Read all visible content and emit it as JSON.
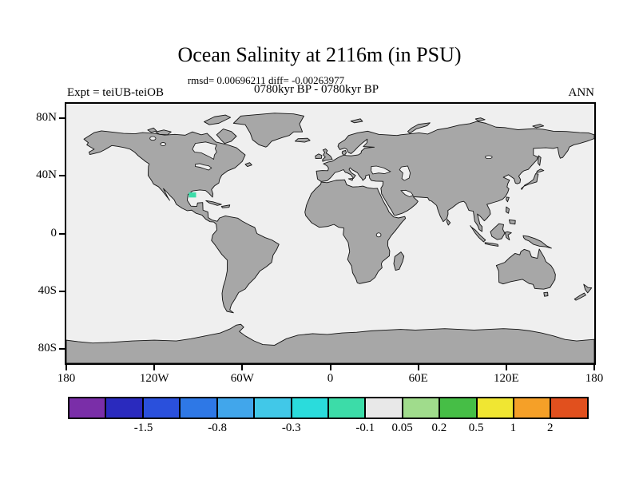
{
  "header": {
    "title": "Ocean Salinity at 2116m (in PSU)",
    "stats_line": "rmsd= 0.00696211 diff= -0.00263977",
    "period_line": "0780kyr BP - 0780kyr BP",
    "experiment_label": "Expt = teiUB-teiOB",
    "season_label": "ANN"
  },
  "axes": {
    "lat_ticks": [
      {
        "label": "80N",
        "deg": 80
      },
      {
        "label": "40N",
        "deg": 40
      },
      {
        "label": "0",
        "deg": 0
      },
      {
        "label": "40S",
        "deg": -40
      },
      {
        "label": "80S",
        "deg": -80
      }
    ],
    "lon_ticks": [
      {
        "label": "180",
        "deg": -180
      },
      {
        "label": "120W",
        "deg": -120
      },
      {
        "label": "60W",
        "deg": -60
      },
      {
        "label": "0",
        "deg": 0
      },
      {
        "label": "60E",
        "deg": 60
      },
      {
        "label": "120E",
        "deg": 120
      },
      {
        "label": "180",
        "deg": 180
      }
    ]
  },
  "colorbar": {
    "segment_colors": [
      "#7a2ea8",
      "#2a2abe",
      "#2a50dc",
      "#2e78e6",
      "#41a6eb",
      "#41c8e8",
      "#2adcdc",
      "#3cdca8",
      "#e8e8e8",
      "#a0dc8c",
      "#46be46",
      "#f0e632",
      "#f5a028",
      "#e1501e"
    ],
    "tick_labels": [
      {
        "text": "-1.5",
        "boundary_index": 2
      },
      {
        "text": "-0.8",
        "boundary_index": 4
      },
      {
        "text": "-0.3",
        "boundary_index": 6
      },
      {
        "text": "-0.1",
        "boundary_index": 8
      },
      {
        "text": "0.05",
        "boundary_index": 9
      },
      {
        "text": "0.2",
        "boundary_index": 10
      },
      {
        "text": "0.5",
        "boundary_index": 11
      },
      {
        "text": "1",
        "boundary_index": 12
      },
      {
        "text": "2",
        "boundary_index": 13
      }
    ]
  },
  "map": {
    "land_color": "#a7a7a7",
    "ocean_color": "#efefef",
    "anomaly": {
      "color": "#3cdca8",
      "location": "Gulf of Mexico",
      "lon": -93,
      "lat": 26
    }
  },
  "chart_data": {
    "type": "heatmap",
    "title": "Ocean Salinity at 2116m (in PSU)",
    "statistics": {
      "rmsd": 0.00696211,
      "diff": -0.00263977
    },
    "period": "0780kyr BP - 0780kyr BP",
    "experiment": "teiUB-teiOB",
    "season": "ANN",
    "depth_m": 2116,
    "units": "PSU",
    "x_axis": {
      "ticks": [
        "180",
        "120W",
        "60W",
        "0",
        "60E",
        "120E",
        "180"
      ],
      "range_deg": [
        -180,
        180
      ]
    },
    "y_axis": {
      "ticks": [
        "80N",
        "40N",
        "0",
        "40S",
        "80S"
      ],
      "range_deg": [
        -90,
        90
      ]
    },
    "color_levels": [
      -2,
      -1.5,
      -1,
      -0.8,
      -0.5,
      -0.3,
      -0.2,
      -0.1,
      0.05,
      0.2,
      0.5,
      1,
      2
    ],
    "legend_position": "bottom",
    "grid": false,
    "field_summary": "Salinity difference is ~0 PSU (gray bin -0.1 to 0.05) over essentially the entire ocean; one small negative anomaly of roughly -0.1 to -0.2 PSU appears in the western Gulf of Mexico near 93W, 26N."
  }
}
